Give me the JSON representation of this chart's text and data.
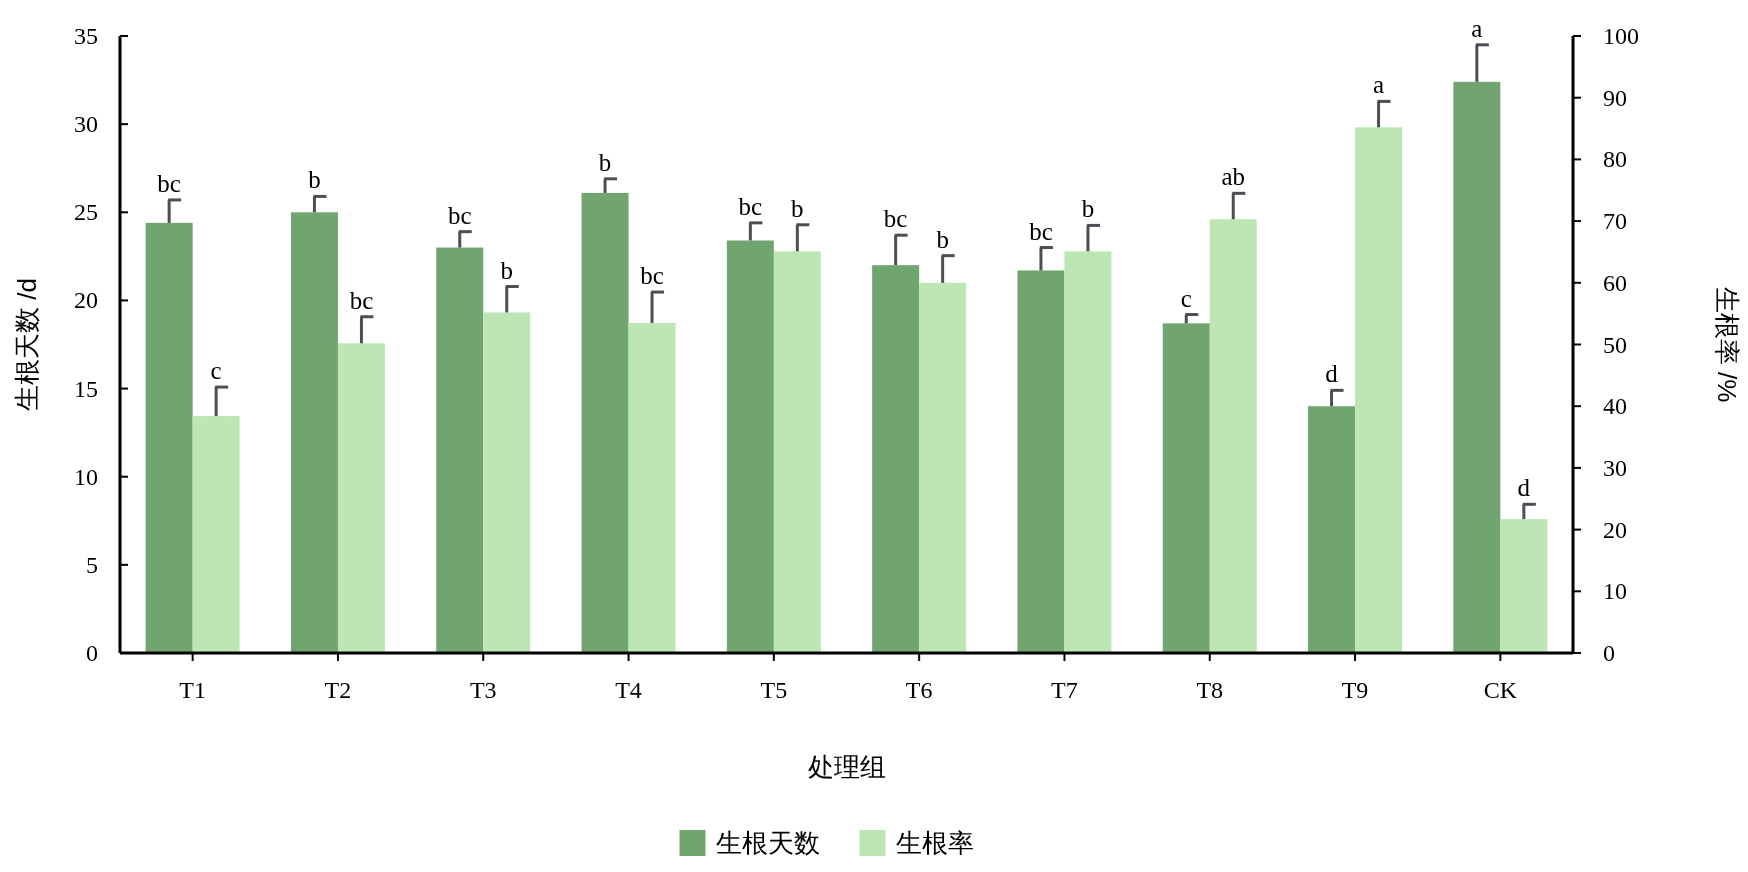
{
  "chart_data": {
    "type": "bar",
    "xlabel": "处理组",
    "ylabel": "生根天数 /d",
    "y2label": "生根率 /%",
    "categories": [
      "T1",
      "T2",
      "T3",
      "T4",
      "T5",
      "T6",
      "T7",
      "T8",
      "T9",
      "CK"
    ],
    "series": [
      {
        "name": "生根天数",
        "color": "#70a56f",
        "values": [
          24.4,
          25.0,
          23.0,
          26.1,
          23.4,
          22.0,
          21.7,
          18.7,
          14.0,
          32.4
        ],
        "errors": [
          1.3,
          0.9,
          0.9,
          0.8,
          1.0,
          1.7,
          1.3,
          0.5,
          0.9,
          2.1
        ],
        "value_labels": [
          "bc",
          "b",
          "bc",
          "b",
          "bc",
          "bc",
          "bc",
          "c",
          "d",
          "a"
        ]
      },
      {
        "name": "生根率",
        "color": "#bde6b4",
        "axis": "y2",
        "values": [
          38.4,
          50.2,
          55.2,
          53.5,
          65.1,
          60.0,
          65.1,
          70.3,
          85.2,
          21.7
        ],
        "errors": [
          4.7,
          4.3,
          4.2,
          5.0,
          4.3,
          4.4,
          4.2,
          4.2,
          4.2,
          2.4
        ],
        "value_labels": [
          "c",
          "bc",
          "b",
          "bc",
          "b",
          "b",
          "b",
          "ab",
          "a",
          "d"
        ]
      }
    ],
    "ylim": [
      0,
      35
    ],
    "yticks": [
      0,
      5,
      10,
      15,
      20,
      25,
      30,
      35
    ],
    "y2lim": [
      0,
      100
    ],
    "y2ticks": [
      0,
      10,
      20,
      30,
      40,
      50,
      60,
      70,
      80,
      90,
      100
    ],
    "legend": "bottom",
    "grid": false
  }
}
